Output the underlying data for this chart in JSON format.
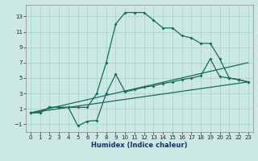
{
  "xlabel": "Humidex (Indice chaleur)",
  "background_color": "#cce8e5",
  "grid_color": "#aad4d0",
  "line_color": "#1a6b5a",
  "xlim": [
    -0.5,
    23.5
  ],
  "ylim": [
    -2.0,
    14.5
  ],
  "xticks": [
    0,
    1,
    2,
    3,
    4,
    5,
    6,
    7,
    8,
    9,
    10,
    11,
    12,
    13,
    14,
    15,
    16,
    17,
    18,
    19,
    20,
    21,
    22,
    23
  ],
  "yticks": [
    -1,
    1,
    3,
    5,
    7,
    9,
    11,
    13
  ],
  "curve1_x": [
    0,
    1,
    2,
    3,
    4,
    5,
    6,
    7,
    8,
    9,
    10,
    11,
    12,
    13,
    14,
    15,
    16,
    17,
    18,
    19,
    20,
    21,
    22,
    23
  ],
  "curve1_y": [
    0.5,
    0.5,
    1.2,
    1.2,
    1.2,
    1.2,
    1.2,
    3.0,
    7.0,
    12.0,
    13.5,
    13.5,
    13.5,
    12.5,
    11.5,
    11.5,
    10.5,
    10.2,
    9.5,
    9.5,
    7.5,
    5.0,
    4.8,
    4.5
  ],
  "curve2_x": [
    0,
    1,
    2,
    3,
    4,
    5,
    6,
    7,
    8,
    9,
    10,
    11,
    12,
    13,
    14,
    15,
    16,
    17,
    18,
    19,
    20,
    21,
    22,
    23
  ],
  "curve2_y": [
    0.5,
    0.5,
    1.2,
    1.2,
    1.2,
    -1.2,
    -0.6,
    -0.5,
    3.0,
    5.5,
    3.2,
    3.5,
    3.8,
    4.0,
    4.3,
    4.5,
    4.8,
    5.0,
    5.3,
    7.5,
    5.2,
    5.0,
    4.8,
    4.5
  ],
  "line1_x": [
    0,
    23
  ],
  "line1_y": [
    0.5,
    4.5
  ],
  "line2_x": [
    0,
    23
  ],
  "line2_y": [
    0.5,
    7.0
  ]
}
